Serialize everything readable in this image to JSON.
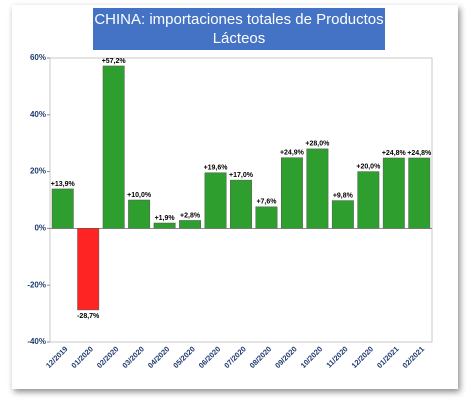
{
  "chart_data": {
    "type": "bar",
    "title": "CHINA: importaciones totales de Productos Lácteos",
    "categories": [
      "12/2019",
      "01/2020",
      "02/2020",
      "03/2020",
      "04/2020",
      "05/2020",
      "06/2020",
      "07/2020",
      "08/2020",
      "09/2020",
      "10/2020",
      "11/2020",
      "12/2020",
      "01/2021",
      "02/2021"
    ],
    "values": [
      13.9,
      -28.7,
      57.2,
      10.0,
      1.9,
      2.8,
      19.6,
      17.0,
      7.6,
      24.9,
      28.0,
      9.8,
      20.0,
      24.8,
      24.8
    ],
    "value_labels": [
      "+13,9%",
      "-28,7%",
      "+57,2%",
      "+10,0%",
      "+1,9%",
      "+2,8%",
      "+19,6%",
      "+17,0%",
      "+7,6%",
      "+24,9%",
      "+28,0%",
      "+9,8%",
      "+20,0%",
      "+24,8%",
      "+24,8%"
    ],
    "color": "#2e9e2e",
    "negative_color": "#ff2424",
    "ylim": [
      -40,
      60
    ],
    "yticks": [
      {
        "value": -40,
        "label": "-40%"
      },
      {
        "value": -20,
        "label": "-20%"
      },
      {
        "value": 0,
        "label": "0%"
      },
      {
        "value": 20,
        "label": "20%"
      },
      {
        "value": 40,
        "label": "40%"
      },
      {
        "value": 60,
        "label": "60%"
      }
    ]
  }
}
